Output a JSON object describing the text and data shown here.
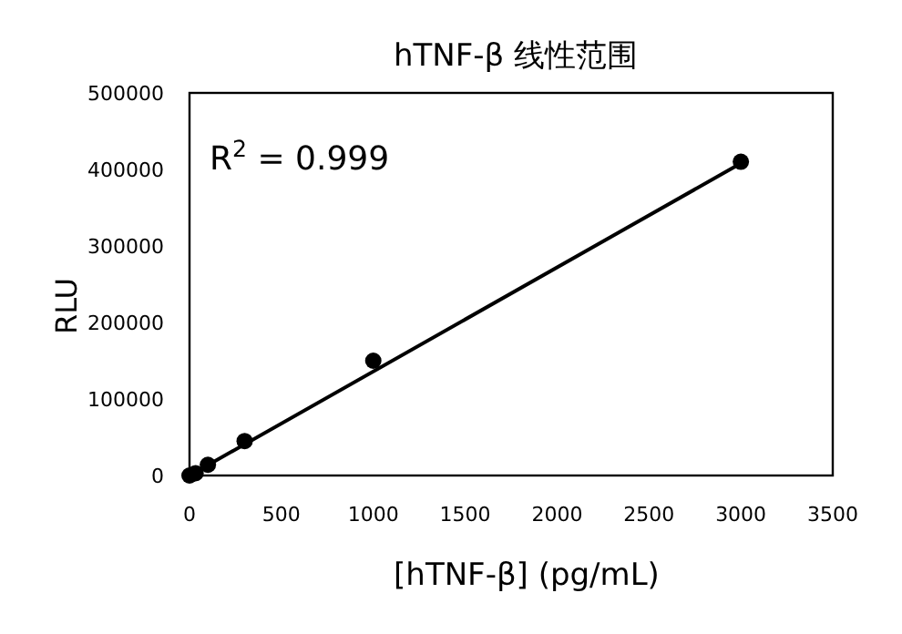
{
  "chart_data": {
    "type": "scatter",
    "title": "hTNF-β 线性范围",
    "xlabel": "[hTNF-β] (pg/mL)",
    "ylabel": "RLU",
    "annotations": [
      "R$^{2}$ = 0.999"
    ],
    "series": [
      {
        "color": "#000000",
        "marker": "circle",
        "x": [
          0,
          33,
          100,
          300,
          1000,
          3000
        ],
        "values": [
          0,
          3000,
          14000,
          45000,
          150000,
          410000
        ]
      },
      {
        "type": "line",
        "color": "#000000",
        "line_style": "solid",
        "marker": "none",
        "x": [
          0,
          3000
        ],
        "values": [
          0,
          408000
        ]
      }
    ],
    "xlim": [
      0,
      3500
    ],
    "xticks": [
      0,
      500,
      1000,
      1500,
      2000,
      2500,
      3000,
      3500
    ],
    "ylim": [
      0,
      500000
    ],
    "yticks": [
      0,
      100000,
      200000,
      300000,
      400000,
      500000
    ],
    "grid": false
  }
}
